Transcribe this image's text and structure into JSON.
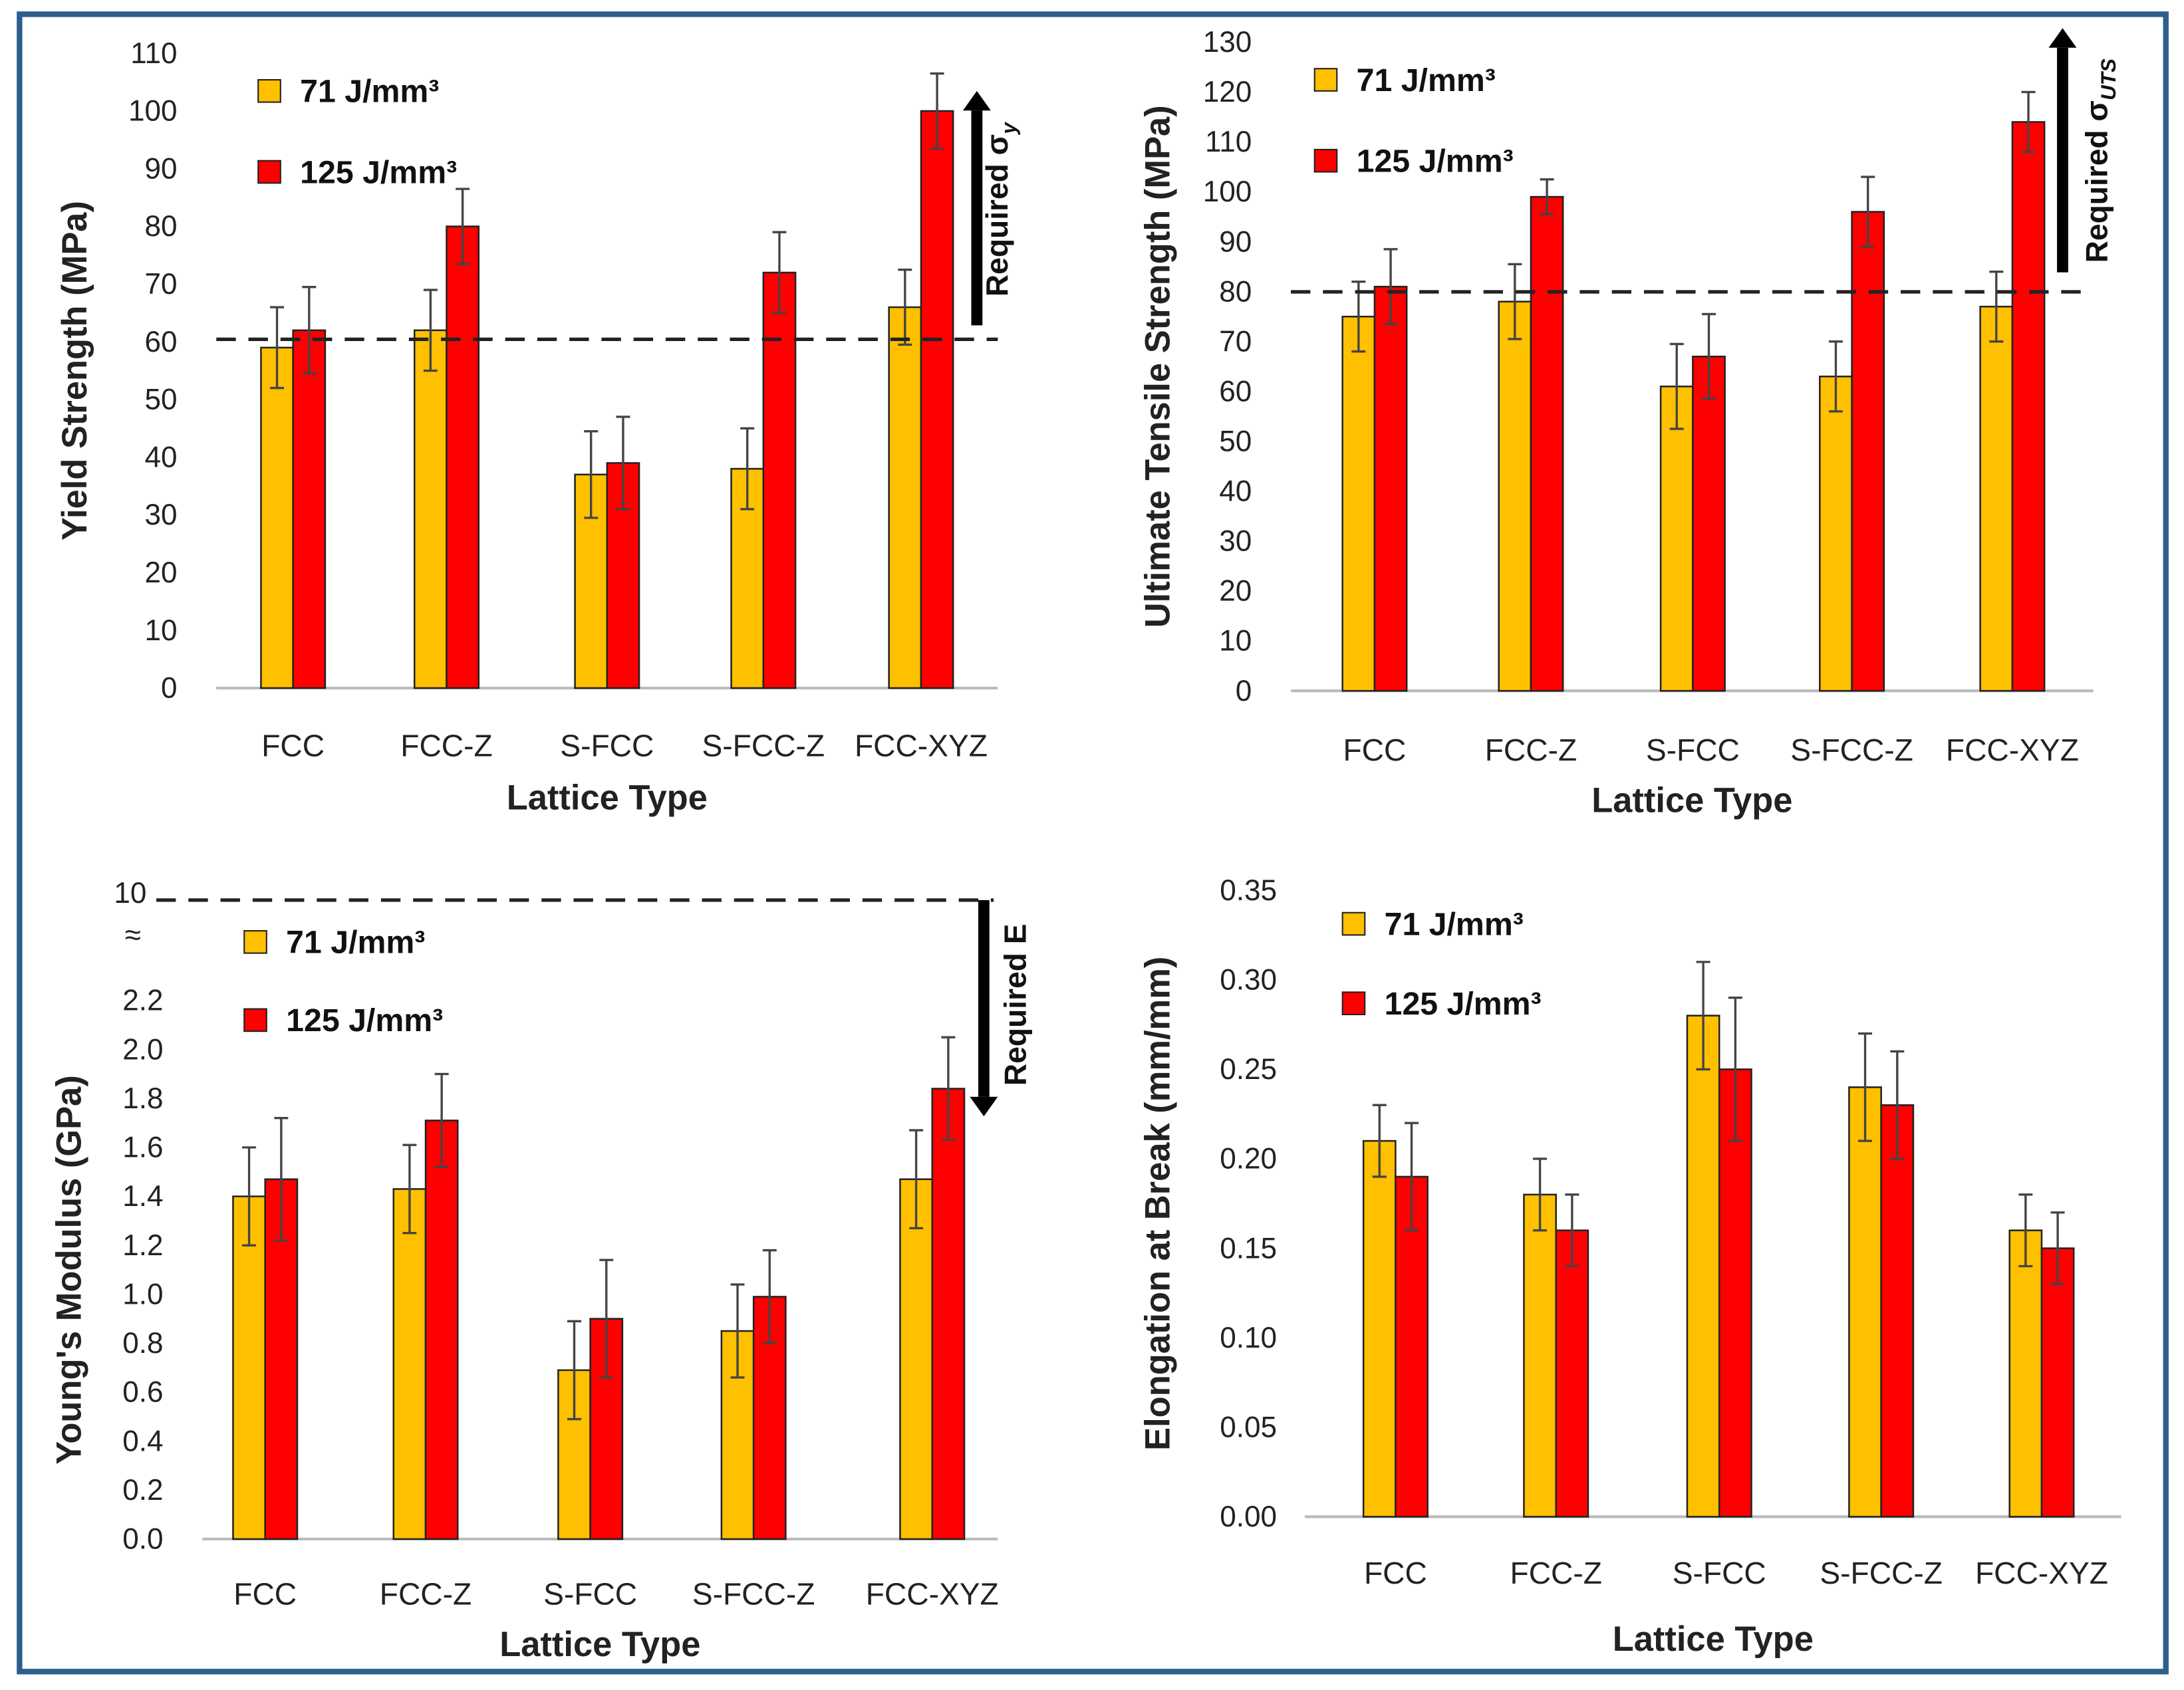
{
  "colors": {
    "s71": "#FFC000",
    "s125": "#FF0000",
    "frame": "#2E5E8E"
  },
  "chart_data": [
    {
      "type": "bar",
      "categories": [
        "FCC",
        "FCC-Z",
        "S-FCC",
        "S-FCC-Z",
        "FCC-XYZ"
      ],
      "xlabel": "Lattice Type",
      "ylabel": "Yield Strength (MPa)",
      "ylim": [
        0,
        110
      ],
      "yticks": [
        "0",
        "10",
        "20",
        "30",
        "40",
        "50",
        "60",
        "70",
        "80",
        "90",
        "100",
        "110"
      ],
      "legend": [
        "71 J/mm³",
        "125 J/mm³"
      ],
      "series": [
        {
          "name": "71 J/mm³",
          "values": [
            59,
            62,
            37,
            38,
            66
          ],
          "errors": [
            7,
            7,
            7.5,
            7,
            6.5
          ]
        },
        {
          "name": "125 J/mm³",
          "values": [
            62,
            80,
            39,
            72,
            100
          ],
          "errors": [
            7.5,
            6.5,
            8,
            7,
            6.5
          ]
        }
      ],
      "threshold": {
        "value": 60,
        "label": "Required σ",
        "sub": "y",
        "direction": "up"
      }
    },
    {
      "type": "bar",
      "categories": [
        "FCC",
        "FCC-Z",
        "S-FCC",
        "S-FCC-Z",
        "FCC-XYZ"
      ],
      "xlabel": "Lattice Type",
      "ylabel": "Ultimate Tensile Strength (MPa)",
      "ylim": [
        0,
        130
      ],
      "yticks": [
        "0",
        "10",
        "20",
        "30",
        "40",
        "50",
        "60",
        "70",
        "80",
        "90",
        "100",
        "110",
        "120",
        "130"
      ],
      "legend": [
        "71 J/mm³",
        "125 J/mm³"
      ],
      "series": [
        {
          "name": "71 J/mm³",
          "values": [
            75,
            78,
            61,
            63,
            77
          ],
          "errors": [
            7,
            7.5,
            8.5,
            7,
            7
          ]
        },
        {
          "name": "125 J/mm³",
          "values": [
            81,
            99,
            67,
            96,
            114
          ],
          "errors": [
            7.5,
            3.5,
            8.5,
            7,
            6
          ]
        }
      ],
      "threshold": {
        "value": 80,
        "label": "Required σ",
        "sub": "UTS",
        "direction": "up"
      }
    },
    {
      "type": "bar",
      "categories": [
        "FCC",
        "FCC-Z",
        "S-FCC",
        "S-FCC-Z",
        "FCC-XYZ"
      ],
      "xlabel": "Lattice Type",
      "ylabel": "Young's Modulus (GPa)",
      "ylim": [
        0,
        2.2
      ],
      "yticks": [
        "0.0",
        "0.2",
        "0.4",
        "0.6",
        "0.8",
        "1.0",
        "1.2",
        "1.4",
        "1.6",
        "1.8",
        "2.0",
        "2.2"
      ],
      "axis_break": {
        "top_label": "10",
        "symbol": "≈"
      },
      "legend": [
        "71 J/mm³",
        "125 J/mm³"
      ],
      "series": [
        {
          "name": "71 J/mm³",
          "values": [
            1.4,
            1.43,
            0.69,
            0.85,
            1.47
          ],
          "errors": [
            0.2,
            0.18,
            0.2,
            0.19,
            0.2
          ]
        },
        {
          "name": "125 J/mm³",
          "values": [
            1.47,
            1.71,
            0.9,
            0.99,
            1.84
          ],
          "errors": [
            0.25,
            0.19,
            0.24,
            0.19,
            0.21
          ]
        }
      ],
      "threshold": {
        "value": 10,
        "label": "Required E",
        "sub": "",
        "direction": "down"
      }
    },
    {
      "type": "bar",
      "categories": [
        "FCC",
        "FCC-Z",
        "S-FCC",
        "S-FCC-Z",
        "FCC-XYZ"
      ],
      "xlabel": "Lattice Type",
      "ylabel": "Elongation at Break (mm/mm)",
      "ylim": [
        0,
        0.35
      ],
      "yticks": [
        "0.00",
        "0.05",
        "0.10",
        "0.15",
        "0.20",
        "0.25",
        "0.30",
        "0.35"
      ],
      "legend": [
        "71 J/mm³",
        "125 J/mm³"
      ],
      "series": [
        {
          "name": "71 J/mm³",
          "values": [
            0.21,
            0.18,
            0.28,
            0.24,
            0.16
          ],
          "errors": [
            0.02,
            0.02,
            0.03,
            0.03,
            0.02
          ]
        },
        {
          "name": "125 J/mm³",
          "values": [
            0.19,
            0.16,
            0.25,
            0.23,
            0.15
          ],
          "errors": [
            0.03,
            0.02,
            0.04,
            0.03,
            0.02
          ]
        }
      ]
    }
  ]
}
